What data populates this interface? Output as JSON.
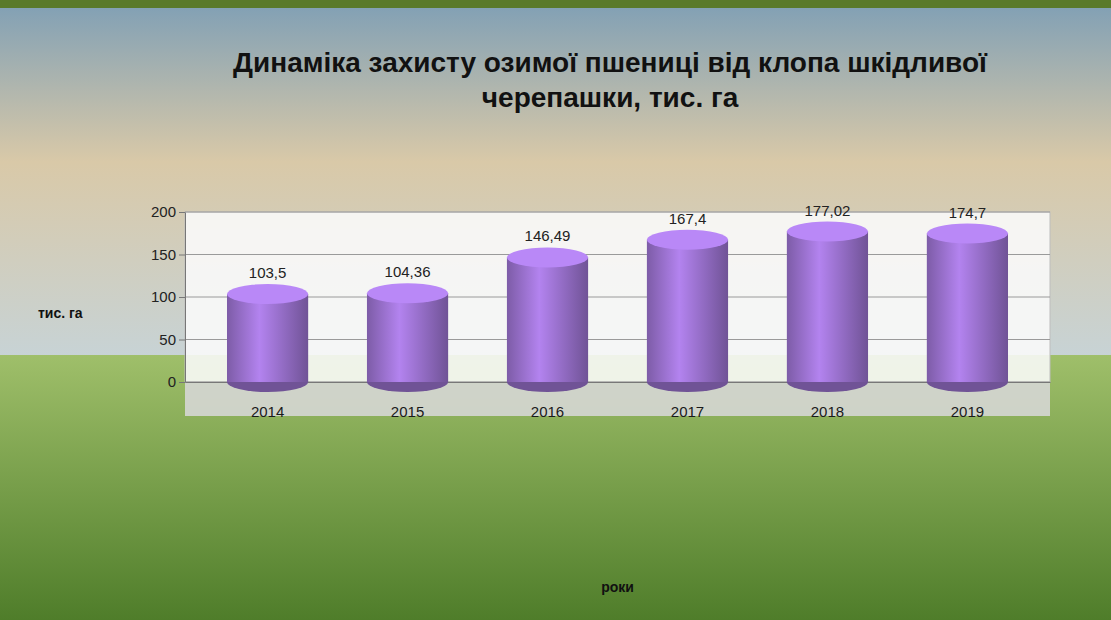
{
  "chart_data": {
    "type": "bar",
    "title": "Динаміка захисту озимої пшениці від клопа шкідливої черепашки, тис. га",
    "x_label": "роки",
    "y_label": "тис. га",
    "categories": [
      "2014",
      "2015",
      "2016",
      "2017",
      "2018",
      "2019"
    ],
    "values": [
      103.5,
      104.36,
      146.49,
      167.4,
      177.02,
      174.7
    ],
    "value_labels": [
      "103,5",
      "104,36",
      "146,49",
      "167,4",
      "177,02",
      "174,7"
    ],
    "data_labels": true,
    "color": "#9b72cf",
    "ylim": [
      0,
      200
    ],
    "yticks": [
      0,
      50,
      100,
      150,
      200
    ],
    "grid": true
  }
}
